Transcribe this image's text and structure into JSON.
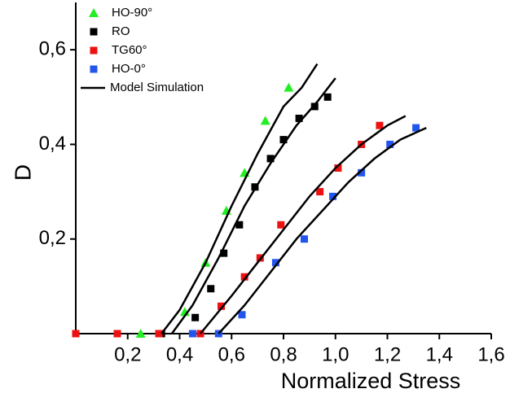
{
  "chart_data": {
    "type": "scatter",
    "xlabel": "Normalized Stress",
    "ylabel": "D",
    "xlim": [
      0,
      1.6
    ],
    "ylim": [
      0,
      0.7
    ],
    "xticks": [
      {
        "value": 0.2,
        "label": "0,2"
      },
      {
        "value": 0.4,
        "label": "0,4"
      },
      {
        "value": 0.6,
        "label": "0,6"
      },
      {
        "value": 0.8,
        "label": "0,8"
      },
      {
        "value": 1.0,
        "label": "1,0"
      },
      {
        "value": 1.2,
        "label": "1,2"
      },
      {
        "value": 1.4,
        "label": "1,4"
      },
      {
        "value": 1.6,
        "label": "1,6"
      }
    ],
    "yticks": [
      {
        "value": 0.2,
        "label": "0,2"
      },
      {
        "value": 0.4,
        "label": "0,4"
      },
      {
        "value": 0.6,
        "label": "0,6"
      }
    ],
    "legend": "upper left",
    "series": [
      {
        "name": "HO-90°",
        "color": "#22ee22",
        "mode": "markers",
        "marker": "triangle",
        "x": [
          0.25,
          0.42,
          0.5,
          0.58,
          0.65,
          0.73,
          0.82
        ],
        "values": [
          0,
          0.046,
          0.15,
          0.26,
          0.34,
          0.45,
          0.52
        ]
      },
      {
        "name": "RO",
        "color": "#000000",
        "mode": "markers",
        "marker": "square",
        "x": [
          0.33,
          0.46,
          0.52,
          0.57,
          0.63,
          0.69,
          0.75,
          0.8,
          0.86,
          0.92,
          0.97
        ],
        "values": [
          0,
          0.034,
          0.095,
          0.17,
          0.23,
          0.31,
          0.37,
          0.41,
          0.455,
          0.48,
          0.5
        ]
      },
      {
        "name": "TG60°",
        "color": "#ee1111",
        "mode": "markers",
        "marker": "square",
        "x": [
          0,
          0.16,
          0.32,
          0.48,
          0.56,
          0.65,
          0.71,
          0.79,
          0.94,
          1.01,
          1.1,
          1.17
        ],
        "values": [
          0,
          0,
          0,
          0,
          0.058,
          0.12,
          0.16,
          0.23,
          0.3,
          0.35,
          0.4,
          0.44
        ]
      },
      {
        "name": "HO-0°",
        "color": "#2255ee",
        "mode": "markers",
        "marker": "square",
        "x": [
          0.45,
          0.55,
          0.64,
          0.77,
          0.88,
          0.99,
          1.1,
          1.21,
          1.31
        ],
        "values": [
          0,
          0,
          0.04,
          0.15,
          0.2,
          0.29,
          0.34,
          0.4,
          0.435
        ]
      },
      {
        "name": "Model Simulation",
        "color": "#000000",
        "mode": "line",
        "x": [
          0.33,
          0.4,
          0.5,
          0.6,
          0.7,
          0.8,
          0.87,
          0.93,
          null,
          0.37,
          0.45,
          0.55,
          0.65,
          0.75,
          0.85,
          0.93,
          1.0,
          null,
          0.48,
          0.6,
          0.7,
          0.8,
          0.9,
          1.0,
          1.1,
          1.2,
          1.27,
          null,
          0.55,
          0.65,
          0.75,
          0.85,
          0.95,
          1.05,
          1.15,
          1.25,
          1.35
        ],
        "values": [
          0,
          0.05,
          0.15,
          0.27,
          0.38,
          0.48,
          0.52,
          0.57,
          null,
          0,
          0.06,
          0.16,
          0.27,
          0.36,
          0.44,
          0.49,
          0.54,
          null,
          0,
          0.08,
          0.15,
          0.22,
          0.29,
          0.35,
          0.4,
          0.44,
          0.46,
          null,
          0,
          0.06,
          0.13,
          0.2,
          0.26,
          0.32,
          0.37,
          0.41,
          0.435
        ]
      }
    ]
  }
}
